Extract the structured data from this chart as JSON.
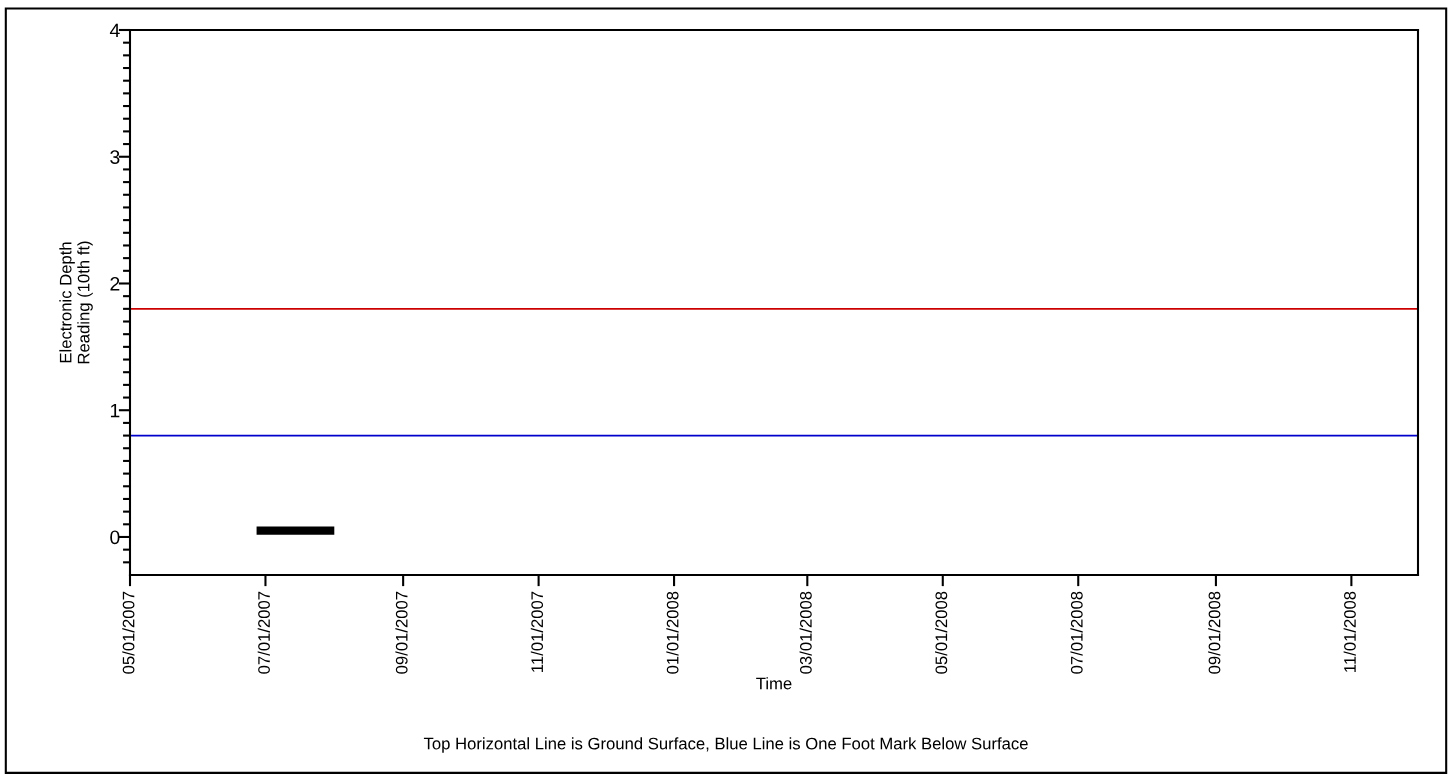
{
  "chart_data": {
    "type": "line",
    "xlabel": "Time",
    "ylabel": "Electronic Depth\nReading (10th ft)",
    "annotations": [
      "Top Horizontal Line is Ground Surface, Blue Line is One Foot Mark Below Surface"
    ],
    "series": [
      {
        "color": "#000000",
        "x": [
          "2007-06-27",
          "2007-08-01"
        ],
        "values": [
          0.05,
          0.05
        ]
      }
    ],
    "ref_lines": [
      {
        "axis": "y",
        "value": 1.8,
        "color": "#cc0000"
      },
      {
        "axis": "y",
        "value": 0.8,
        "color": "#0000cc"
      }
    ],
    "xlim": [
      "2007-05-01",
      "2008-12-01"
    ],
    "xticks": [
      {
        "value": "2007-05-01",
        "label": "05/01/2007"
      },
      {
        "value": "2007-07-01",
        "label": "07/01/2007"
      },
      {
        "value": "2007-09-01",
        "label": "09/01/2007"
      },
      {
        "value": "2007-11-01",
        "label": "11/01/2007"
      },
      {
        "value": "2008-01-01",
        "label": "01/01/2008"
      },
      {
        "value": "2008-03-01",
        "label": "03/01/2008"
      },
      {
        "value": "2008-05-01",
        "label": "05/01/2008"
      },
      {
        "value": "2008-07-01",
        "label": "07/01/2008"
      },
      {
        "value": "2008-09-01",
        "label": "09/01/2008"
      },
      {
        "value": "2008-11-01",
        "label": "11/01/2008"
      }
    ],
    "ylim": [
      -0.3,
      4
    ],
    "yticks": [
      {
        "value": -0.2,
        "label": null
      },
      {
        "value": -0.1,
        "label": null
      },
      0,
      {
        "value": 0.1,
        "label": null
      },
      {
        "value": 0.2,
        "label": null
      },
      {
        "value": 0.3,
        "label": null
      },
      {
        "value": 0.4,
        "label": null
      },
      {
        "value": 0.5,
        "label": null
      },
      {
        "value": 0.6,
        "label": null
      },
      {
        "value": 0.7,
        "label": null
      },
      {
        "value": 0.8,
        "label": null
      },
      {
        "value": 0.9,
        "label": null
      },
      1,
      {
        "value": 1.1,
        "label": null
      },
      {
        "value": 1.2,
        "label": null
      },
      {
        "value": 1.3,
        "label": null
      },
      {
        "value": 1.4,
        "label": null
      },
      {
        "value": 1.5,
        "label": null
      },
      {
        "value": 1.6,
        "label": null
      },
      {
        "value": 1.7,
        "label": null
      },
      {
        "value": 1.8,
        "label": null
      },
      {
        "value": 1.9,
        "label": null
      },
      2,
      {
        "value": 2.1,
        "label": null
      },
      {
        "value": 2.2,
        "label": null
      },
      {
        "value": 2.3,
        "label": null
      },
      {
        "value": 2.4,
        "label": null
      },
      {
        "value": 2.5,
        "label": null
      },
      {
        "value": 2.6,
        "label": null
      },
      {
        "value": 2.7,
        "label": null
      },
      {
        "value": 2.8,
        "label": null
      },
      {
        "value": 2.9,
        "label": null
      },
      3,
      {
        "value": 3.1,
        "label": null
      },
      {
        "value": 3.2,
        "label": null
      },
      {
        "value": 3.3,
        "label": null
      },
      {
        "value": 3.4,
        "label": null
      },
      {
        "value": 3.5,
        "label": null
      },
      {
        "value": 3.6,
        "label": null
      },
      {
        "value": 3.7,
        "label": null
      },
      {
        "value": 3.8,
        "label": null
      },
      {
        "value": 3.9,
        "label": null
      },
      4
    ],
    "grid": false,
    "marker": "none",
    "line_style": "solid"
  }
}
